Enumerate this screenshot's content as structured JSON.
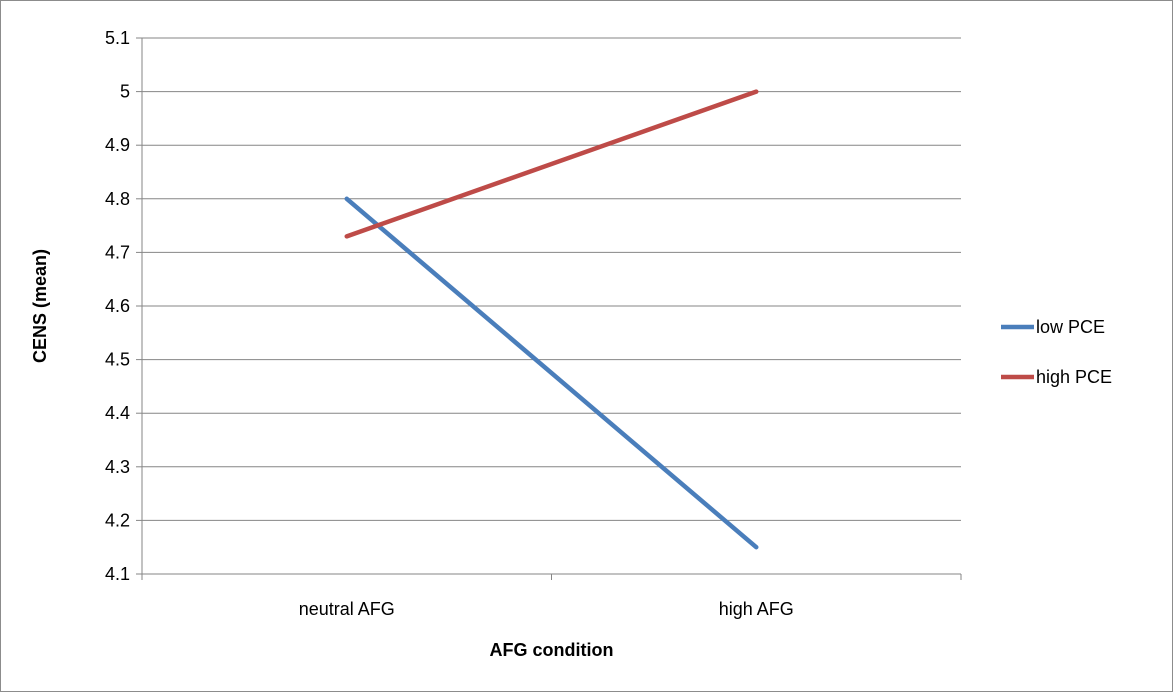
{
  "chart_data": {
    "type": "line",
    "categories": [
      "neutral AFG",
      "high AFG"
    ],
    "series": [
      {
        "name": "low PCE",
        "values": [
          4.8,
          4.15
        ],
        "color": "#4a7ebb"
      },
      {
        "name": "high PCE",
        "values": [
          4.73,
          5.0
        ],
        "color": "#be4b48"
      }
    ],
    "xlabel": "AFG condition",
    "ylabel": "CENS (mean)",
    "ylim": [
      4.1,
      5.1
    ],
    "yticks": [
      "4.1",
      "4.2",
      "4.3",
      "4.4",
      "4.5",
      "4.6",
      "4.7",
      "4.8",
      "4.9",
      "5",
      "5.1"
    ],
    "grid": true,
    "legend_position": "right"
  }
}
